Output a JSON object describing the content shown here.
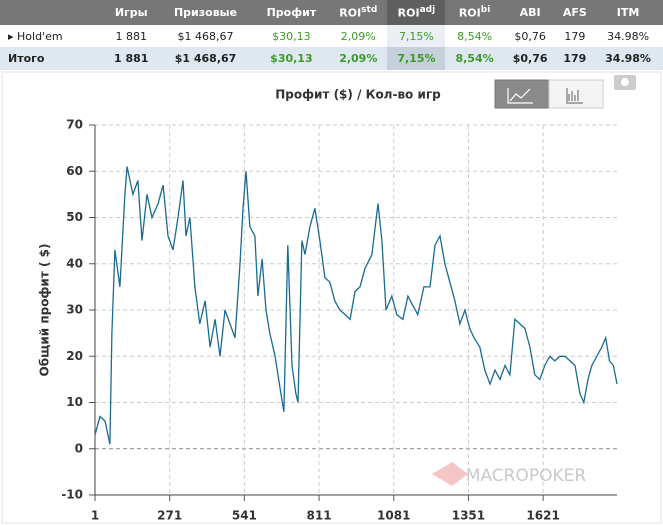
{
  "table": {
    "columns": [
      {
        "text": ""
      },
      {
        "text": "Игры"
      },
      {
        "text": "Призовые"
      },
      {
        "text": "Профит"
      },
      {
        "text": "ROI",
        "sup": "std"
      },
      {
        "text": "ROI",
        "sup": "adj"
      },
      {
        "text": "ROI",
        "sup": "bi"
      },
      {
        "text": "ABI"
      },
      {
        "text": "AFS"
      },
      {
        "text": "ITM"
      }
    ],
    "rows": [
      [
        "Hold'em",
        "1 881",
        "$1 468,67",
        "$30,13",
        "2,09%",
        "7,15%",
        "8,54%",
        "$0,76",
        "179",
        "34.98%"
      ],
      [
        "Итого",
        "1 881",
        "$1 468,67",
        "$30,13",
        "2,09%",
        "7,15%",
        "8,54%",
        "$0,76",
        "179",
        "34.98%"
      ]
    ]
  },
  "watermark": "MACROPOKER",
  "chart_data": {
    "type": "line",
    "title": "Профит ($) / Кол-во игр",
    "y_label": "Общий профит ( $)",
    "x": [
      1,
      19,
      37,
      55,
      62,
      73,
      91,
      109,
      117,
      138,
      156,
      171,
      189,
      207,
      229,
      247,
      265,
      283,
      301,
      319,
      330,
      344,
      362,
      380,
      399,
      417,
      435,
      453,
      471,
      489,
      507,
      525,
      536,
      547,
      561,
      579,
      590,
      605,
      619,
      633,
      652,
      670,
      684,
      698,
      713,
      727,
      735,
      749,
      760,
      778,
      796,
      814,
      832,
      850,
      868,
      886,
      905,
      923,
      941,
      959,
      977,
      1002,
      1024,
      1038,
      1053,
      1074,
      1092,
      1114,
      1132,
      1150,
      1168,
      1190,
      1212,
      1230,
      1248,
      1266,
      1284,
      1302,
      1320,
      1338,
      1356,
      1371,
      1392,
      1410,
      1429,
      1447,
      1465,
      1483,
      1501,
      1519,
      1537,
      1555,
      1573,
      1591,
      1609,
      1627,
      1645,
      1663,
      1681,
      1700,
      1718,
      1736,
      1754,
      1768,
      1783,
      1797,
      1815,
      1833,
      1847,
      1861,
      1875,
      1888
    ],
    "series": [
      {
        "name": "Профит",
        "color": "#1a6b8f",
        "values": [
          3,
          7,
          6,
          1,
          25,
          43,
          35,
          55,
          61,
          55,
          58,
          45,
          55,
          50,
          53,
          57,
          46,
          43,
          50,
          58,
          46,
          50,
          35,
          27,
          32,
          22,
          28,
          20,
          30,
          27,
          24,
          40,
          52,
          60,
          48,
          46,
          33,
          41,
          30,
          25,
          20,
          13,
          8,
          44,
          18,
          12,
          10,
          45,
          42,
          48,
          52,
          45,
          37,
          36,
          32,
          30,
          29,
          28,
          34,
          35,
          39,
          42,
          53,
          45,
          30,
          33,
          29,
          28,
          33,
          31,
          29,
          35,
          35,
          44,
          46,
          40,
          36,
          32,
          27,
          30,
          26,
          24,
          22,
          17,
          14,
          17,
          15,
          18,
          16,
          28,
          27,
          26,
          22,
          16,
          15,
          18,
          20,
          19,
          20,
          20,
          19,
          18,
          12,
          10,
          15,
          18,
          20,
          22,
          24,
          19,
          18,
          14
        ]
      }
    ],
    "xlim": [
      1,
      1888
    ],
    "xticks": [
      1,
      271,
      541,
      811,
      1081,
      1351,
      1621
    ],
    "ylim": [
      -10,
      70
    ],
    "yticks": [
      -10,
      0,
      10,
      20,
      30,
      40,
      50,
      60,
      70
    ],
    "grid": true
  }
}
